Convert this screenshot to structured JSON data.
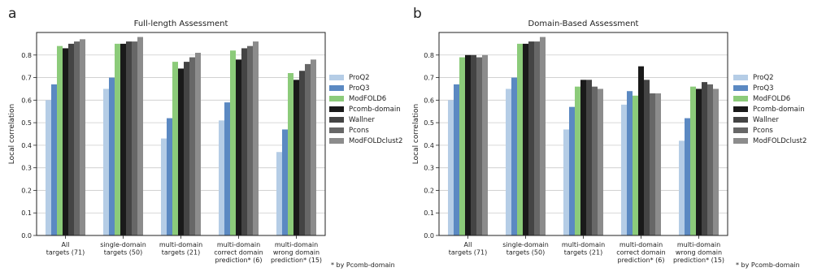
{
  "colors": {
    "ProQ2": "#b5cde6",
    "ProQ3": "#5b89c2",
    "ModFOLD6": "#8ccb7a",
    "Pcomb-domain": "#1a1a1a",
    "Wallner": "#444444",
    "Pcons": "#676767",
    "ModFOLDclust2": "#8c8c8c",
    "grid": "#cccccc"
  },
  "footnote": "* by Pcomb-domain",
  "chart_data": [
    {
      "type": "bar",
      "panel": "a",
      "title": "Full-length Assessment",
      "ylabel": "Local correlation",
      "ylim": [
        0,
        0.9
      ],
      "yticks": [
        "0.0",
        "0.1",
        "0.2",
        "0.3",
        "0.4",
        "0.5",
        "0.6",
        "0.7",
        "0.8"
      ],
      "grid": "horizontal",
      "legend": "right",
      "categories": [
        [
          "All",
          "targets (71)"
        ],
        [
          "single-domain",
          "targets (50)"
        ],
        [
          "multi-domain",
          "targets (21)"
        ],
        [
          "multi-domain",
          "correct domain",
          "prediction* (6)"
        ],
        [
          "multi-domain",
          "wrong domain",
          "prediction* (15)"
        ]
      ],
      "series": [
        {
          "name": "ProQ2",
          "values": [
            0.6,
            0.65,
            0.43,
            0.51,
            0.37
          ]
        },
        {
          "name": "ProQ3",
          "values": [
            0.67,
            0.7,
            0.52,
            0.59,
            0.47
          ]
        },
        {
          "name": "ModFOLD6",
          "values": [
            0.84,
            0.85,
            0.77,
            0.82,
            0.72
          ]
        },
        {
          "name": "Pcomb-domain",
          "values": [
            0.83,
            0.85,
            0.74,
            0.78,
            0.69
          ]
        },
        {
          "name": "Wallner",
          "values": [
            0.85,
            0.86,
            0.77,
            0.83,
            0.73
          ]
        },
        {
          "name": "Pcons",
          "values": [
            0.86,
            0.86,
            0.79,
            0.84,
            0.76
          ]
        },
        {
          "name": "ModFOLDclust2",
          "values": [
            0.87,
            0.88,
            0.81,
            0.86,
            0.78
          ]
        }
      ]
    },
    {
      "type": "bar",
      "panel": "b",
      "title": "Domain-Based Assessment",
      "ylabel": "Local correlation",
      "ylim": [
        0,
        0.9
      ],
      "yticks": [
        "0.0",
        "0.1",
        "0.2",
        "0.3",
        "0.4",
        "0.5",
        "0.6",
        "0.7",
        "0.8"
      ],
      "grid": "horizontal",
      "legend": "right",
      "categories": [
        [
          "All",
          "targets (71)"
        ],
        [
          "single-domain",
          "targets (50)"
        ],
        [
          "multi-domain",
          "targets (21)"
        ],
        [
          "multi-domain",
          "correct domain",
          "prediction* (6)"
        ],
        [
          "multi-domain",
          "wrong domain",
          "prediction* (15)"
        ]
      ],
      "series": [
        {
          "name": "ProQ2",
          "values": [
            0.6,
            0.65,
            0.47,
            0.58,
            0.42
          ]
        },
        {
          "name": "ProQ3",
          "values": [
            0.67,
            0.7,
            0.57,
            0.64,
            0.52
          ]
        },
        {
          "name": "ModFOLD6",
          "values": [
            0.79,
            0.85,
            0.66,
            0.62,
            0.66
          ]
        },
        {
          "name": "Pcomb-domain",
          "values": [
            0.8,
            0.85,
            0.69,
            0.75,
            0.65
          ]
        },
        {
          "name": "Wallner",
          "values": [
            0.8,
            0.86,
            0.69,
            0.69,
            0.68
          ]
        },
        {
          "name": "Pcons",
          "values": [
            0.79,
            0.86,
            0.66,
            0.63,
            0.67
          ]
        },
        {
          "name": "ModFOLDclust2",
          "values": [
            0.8,
            0.88,
            0.65,
            0.63,
            0.65
          ]
        }
      ]
    }
  ]
}
